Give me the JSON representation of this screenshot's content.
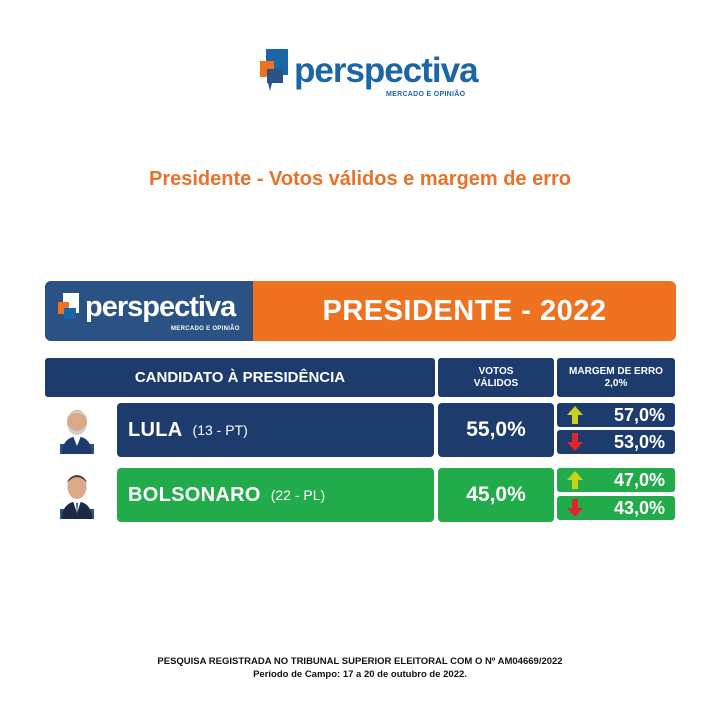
{
  "brand": {
    "name": "perspectiva",
    "tagline": "MERCADO E OPINIÃO",
    "colors": {
      "blue": "#1b66a8",
      "orange": "#ee7220",
      "navy": "#1d3b6c",
      "green": "#22ab4b",
      "up": "#c6d419",
      "down": "#e0262a"
    }
  },
  "subtitle": "Presidente - Votos válidos e margem de erro",
  "header": {
    "title": "PRESIDENTE - 2022"
  },
  "table": {
    "columns": {
      "candidate": "CANDIDATO À PRESIDÊNCIA",
      "votes_line1": "VOTOS",
      "votes_line2": "VÁLIDOS",
      "margin_line1": "MARGEM DE ERRO",
      "margin_line2": "2,0%"
    },
    "rows": [
      {
        "name": "LULA",
        "party": "(13 - PT)",
        "votes": "55,0%",
        "upper": "57,0%",
        "lower": "53,0%",
        "icons": [
          "candidate-photo-icon",
          "up-arrow-icon",
          "down-arrow-icon"
        ]
      },
      {
        "name": "BOLSONARO",
        "party": "(22 - PL)",
        "votes": "45,0%",
        "upper": "47,0%",
        "lower": "43,0%",
        "icons": [
          "candidate-photo-icon",
          "up-arrow-icon",
          "down-arrow-icon"
        ]
      }
    ]
  },
  "footer": {
    "line1": "PESQUISA REGISTRADA NO TRIBUNAL SUPERIOR ELEITORAL COM O Nº AM04669/2022",
    "line2": "Período de Campo: 17 a 20 de outubro de 2022."
  }
}
